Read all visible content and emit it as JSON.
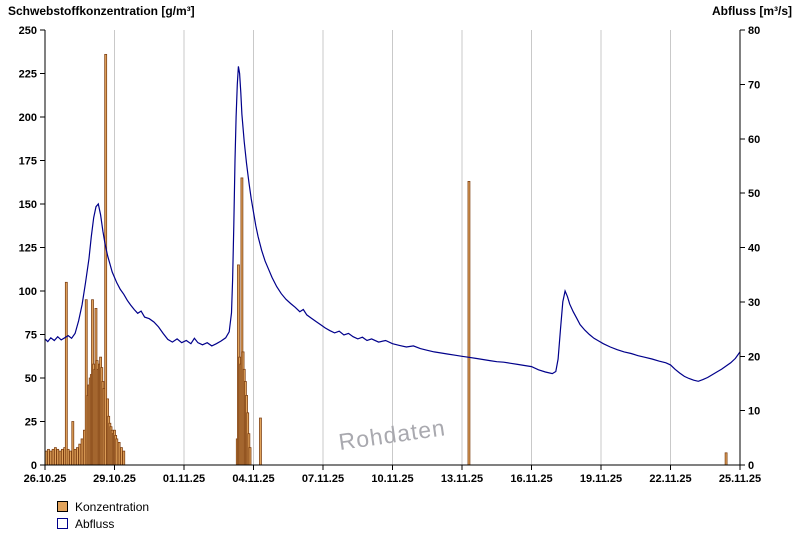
{
  "watermark": "Rohdaten",
  "legend": [
    {
      "label": "Konzentration",
      "marker": "bar-swatch"
    },
    {
      "label": "Abfluss",
      "marker": "line-swatch"
    }
  ],
  "colors": {
    "bar_fill": "#e2a45c",
    "bar_stroke": "#7a3c10",
    "line": "#00008b",
    "grid": "#c9c9c9",
    "axis": "#000000",
    "watermark": "#a9a9af",
    "background": "#ffffff"
  },
  "chart_data": {
    "type": "mixed",
    "title": "",
    "x_axis": {
      "unit": "date",
      "range_days": [
        0,
        30
      ],
      "tick_positions_days": [
        0,
        3,
        6,
        9,
        12,
        15,
        18,
        21,
        24,
        27,
        30
      ],
      "tick_labels": [
        "26.10.25",
        "29.10.25",
        "01.11.25",
        "04.11.25",
        "07.11.25",
        "10.11.25",
        "13.11.25",
        "16.11.25",
        "19.11.25",
        "22.11.25",
        "25.11.25"
      ]
    },
    "y_left": {
      "label": "Schwebstoffkonzentration [g/m³]",
      "range": [
        0,
        250
      ],
      "tick_step": 25
    },
    "y_right": {
      "label": "Abfluss [m³/s]",
      "range": [
        0,
        80
      ],
      "tick_step": 10
    },
    "grid": "vertical-only",
    "legend_position": "bottom-left",
    "series": [
      {
        "name": "Konzentration",
        "type": "bar",
        "axis": "left",
        "points": [
          [
            0.05,
            8
          ],
          [
            0.15,
            9
          ],
          [
            0.25,
            8
          ],
          [
            0.35,
            9
          ],
          [
            0.45,
            10
          ],
          [
            0.55,
            9
          ],
          [
            0.65,
            8
          ],
          [
            0.75,
            9
          ],
          [
            0.85,
            10
          ],
          [
            0.92,
            105
          ],
          [
            1.0,
            9
          ],
          [
            1.1,
            8
          ],
          [
            1.2,
            25
          ],
          [
            1.3,
            9
          ],
          [
            1.4,
            10
          ],
          [
            1.5,
            12
          ],
          [
            1.6,
            15
          ],
          [
            1.7,
            20
          ],
          [
            1.78,
            95
          ],
          [
            1.85,
            40
          ],
          [
            1.9,
            46
          ],
          [
            1.95,
            50
          ],
          [
            2.0,
            52
          ],
          [
            2.05,
            95
          ],
          [
            2.1,
            58
          ],
          [
            2.15,
            55
          ],
          [
            2.2,
            90
          ],
          [
            2.25,
            60
          ],
          [
            2.3,
            55
          ],
          [
            2.35,
            58
          ],
          [
            2.4,
            62
          ],
          [
            2.45,
            56
          ],
          [
            2.5,
            48
          ],
          [
            2.55,
            44
          ],
          [
            2.62,
            236
          ],
          [
            2.7,
            38
          ],
          [
            2.75,
            28
          ],
          [
            2.8,
            24
          ],
          [
            2.85,
            22
          ],
          [
            2.9,
            20
          ],
          [
            2.95,
            18
          ],
          [
            3.0,
            20
          ],
          [
            3.05,
            17
          ],
          [
            3.1,
            15
          ],
          [
            3.2,
            13
          ],
          [
            3.3,
            10
          ],
          [
            3.4,
            8
          ],
          [
            8.3,
            15
          ],
          [
            8.35,
            115
          ],
          [
            8.4,
            62
          ],
          [
            8.45,
            58
          ],
          [
            8.5,
            165
          ],
          [
            8.55,
            65
          ],
          [
            8.6,
            55
          ],
          [
            8.65,
            48
          ],
          [
            8.7,
            40
          ],
          [
            8.75,
            30
          ],
          [
            8.8,
            18
          ],
          [
            8.85,
            10
          ],
          [
            9.3,
            27
          ],
          [
            18.3,
            163
          ],
          [
            29.4,
            7
          ]
        ]
      },
      {
        "name": "Abfluss",
        "type": "line",
        "axis": "right",
        "points": [
          [
            0,
            23.2
          ],
          [
            0.12,
            22.7
          ],
          [
            0.25,
            23.4
          ],
          [
            0.4,
            22.9
          ],
          [
            0.55,
            23.6
          ],
          [
            0.7,
            23.0
          ],
          [
            0.85,
            23.4
          ],
          [
            1.0,
            23.8
          ],
          [
            1.15,
            23.3
          ],
          [
            1.3,
            24.2
          ],
          [
            1.45,
            26.5
          ],
          [
            1.6,
            29.5
          ],
          [
            1.75,
            33.5
          ],
          [
            1.9,
            38.0
          ],
          [
            2.0,
            42.0
          ],
          [
            2.1,
            45.5
          ],
          [
            2.2,
            47.5
          ],
          [
            2.3,
            48.0
          ],
          [
            2.4,
            46.0
          ],
          [
            2.5,
            43.0
          ],
          [
            2.6,
            40.5
          ],
          [
            2.7,
            38.5
          ],
          [
            2.8,
            37.0
          ],
          [
            2.9,
            35.5
          ],
          [
            3.0,
            34.5
          ],
          [
            3.1,
            33.5
          ],
          [
            3.25,
            32.3
          ],
          [
            3.4,
            31.4
          ],
          [
            3.55,
            30.3
          ],
          [
            3.7,
            29.4
          ],
          [
            3.85,
            28.6
          ],
          [
            4.0,
            27.9
          ],
          [
            4.15,
            28.3
          ],
          [
            4.3,
            27.2
          ],
          [
            4.5,
            26.9
          ],
          [
            4.7,
            26.3
          ],
          [
            4.9,
            25.4
          ],
          [
            5.1,
            24.2
          ],
          [
            5.3,
            23.1
          ],
          [
            5.5,
            22.6
          ],
          [
            5.7,
            23.2
          ],
          [
            5.9,
            22.5
          ],
          [
            6.1,
            22.9
          ],
          [
            6.3,
            22.3
          ],
          [
            6.45,
            23.3
          ],
          [
            6.6,
            22.5
          ],
          [
            6.8,
            22.1
          ],
          [
            7.0,
            22.5
          ],
          [
            7.2,
            21.9
          ],
          [
            7.4,
            22.3
          ],
          [
            7.6,
            22.8
          ],
          [
            7.8,
            23.4
          ],
          [
            7.95,
            24.5
          ],
          [
            8.05,
            28.0
          ],
          [
            8.1,
            34.0
          ],
          [
            8.15,
            44.0
          ],
          [
            8.2,
            56.0
          ],
          [
            8.25,
            64.0
          ],
          [
            8.3,
            70.0
          ],
          [
            8.35,
            73.3
          ],
          [
            8.4,
            72.0
          ],
          [
            8.45,
            68.5
          ],
          [
            8.5,
            64.5
          ],
          [
            8.6,
            59.5
          ],
          [
            8.7,
            55.5
          ],
          [
            8.8,
            52.0
          ],
          [
            8.9,
            49.0
          ],
          [
            9.0,
            46.5
          ],
          [
            9.1,
            44.0
          ],
          [
            9.2,
            42.0
          ],
          [
            9.35,
            39.5
          ],
          [
            9.5,
            37.5
          ],
          [
            9.65,
            36.0
          ],
          [
            9.8,
            34.5
          ],
          [
            10.0,
            32.8
          ],
          [
            10.2,
            31.5
          ],
          [
            10.4,
            30.5
          ],
          [
            10.6,
            29.7
          ],
          [
            10.8,
            29.0
          ],
          [
            11.0,
            28.2
          ],
          [
            11.15,
            28.6
          ],
          [
            11.3,
            27.6
          ],
          [
            11.5,
            27.0
          ],
          [
            11.7,
            26.4
          ],
          [
            11.9,
            25.8
          ],
          [
            12.1,
            25.2
          ],
          [
            12.3,
            24.7
          ],
          [
            12.5,
            24.3
          ],
          [
            12.7,
            24.6
          ],
          [
            12.9,
            23.9
          ],
          [
            13.1,
            24.2
          ],
          [
            13.3,
            23.6
          ],
          [
            13.5,
            23.2
          ],
          [
            13.7,
            23.5
          ],
          [
            13.9,
            22.9
          ],
          [
            14.1,
            23.2
          ],
          [
            14.4,
            22.6
          ],
          [
            14.7,
            22.9
          ],
          [
            15.0,
            22.3
          ],
          [
            15.3,
            22.0
          ],
          [
            15.6,
            21.7
          ],
          [
            15.9,
            21.9
          ],
          [
            16.2,
            21.4
          ],
          [
            16.5,
            21.1
          ],
          [
            16.8,
            20.8
          ],
          [
            17.1,
            20.6
          ],
          [
            17.4,
            20.4
          ],
          [
            17.7,
            20.2
          ],
          [
            18.0,
            20.0
          ],
          [
            18.3,
            19.8
          ],
          [
            18.6,
            19.6
          ],
          [
            18.9,
            19.4
          ],
          [
            19.2,
            19.2
          ],
          [
            19.5,
            19.0
          ],
          [
            19.8,
            18.9
          ],
          [
            20.1,
            18.7
          ],
          [
            20.4,
            18.5
          ],
          [
            20.7,
            18.3
          ],
          [
            21.0,
            18.1
          ],
          [
            21.3,
            17.5
          ],
          [
            21.6,
            17.1
          ],
          [
            21.9,
            16.8
          ],
          [
            22.05,
            17.2
          ],
          [
            22.15,
            19.5
          ],
          [
            22.25,
            25.0
          ],
          [
            22.35,
            30.0
          ],
          [
            22.45,
            32.0
          ],
          [
            22.55,
            31.0
          ],
          [
            22.65,
            29.6
          ],
          [
            22.8,
            28.2
          ],
          [
            22.95,
            27.0
          ],
          [
            23.1,
            25.8
          ],
          [
            23.3,
            24.8
          ],
          [
            23.5,
            24.0
          ],
          [
            23.7,
            23.3
          ],
          [
            23.9,
            22.8
          ],
          [
            24.1,
            22.3
          ],
          [
            24.4,
            21.7
          ],
          [
            24.7,
            21.2
          ],
          [
            25.0,
            20.8
          ],
          [
            25.3,
            20.5
          ],
          [
            25.6,
            20.1
          ],
          [
            25.9,
            19.8
          ],
          [
            26.2,
            19.5
          ],
          [
            26.5,
            19.1
          ],
          [
            26.8,
            18.8
          ],
          [
            27.0,
            18.4
          ],
          [
            27.2,
            17.6
          ],
          [
            27.4,
            16.9
          ],
          [
            27.6,
            16.3
          ],
          [
            27.8,
            15.9
          ],
          [
            28.0,
            15.6
          ],
          [
            28.2,
            15.4
          ],
          [
            28.4,
            15.7
          ],
          [
            28.6,
            16.1
          ],
          [
            28.8,
            16.6
          ],
          [
            29.0,
            17.1
          ],
          [
            29.2,
            17.6
          ],
          [
            29.4,
            18.2
          ],
          [
            29.6,
            18.8
          ],
          [
            29.8,
            19.6
          ],
          [
            30.0,
            20.8
          ]
        ]
      }
    ]
  }
}
